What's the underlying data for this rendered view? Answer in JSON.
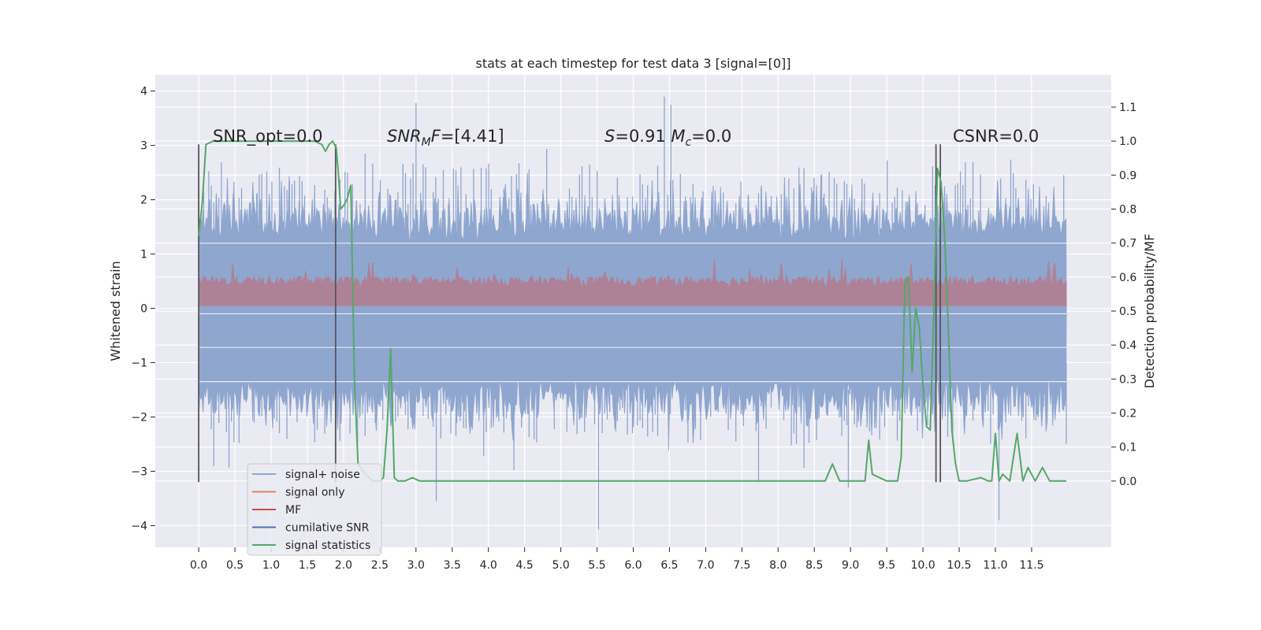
{
  "chart_data": {
    "type": "line",
    "title": "stats at each timestep for test data 3 [signal=[0]]",
    "ylabel": "Whitened strain",
    "y2label": "Detection probability/MF",
    "xlim": [
      -0.6,
      12.6
    ],
    "ylim": [
      -4.4,
      4.3
    ],
    "y2lim": [
      -0.195,
      1.195
    ],
    "x_ticks": [
      "0.0",
      "0.5",
      "1.0",
      "1.5",
      "2.0",
      "2.5",
      "3.0",
      "3.5",
      "4.0",
      "4.5",
      "5.0",
      "5.5",
      "6.0",
      "6.5",
      "7.0",
      "7.5",
      "8.0",
      "8.5",
      "9.0",
      "9.5",
      "10.0",
      "10.5",
      "11.0",
      "11.5"
    ],
    "y_ticks": [
      "−4",
      "−3",
      "−2",
      "−1",
      "0",
      "1",
      "2",
      "3",
      "4"
    ],
    "y2_ticks": [
      "0.0",
      "0.1",
      "0.2",
      "0.3",
      "0.4",
      "0.5",
      "0.6",
      "0.7",
      "0.8",
      "0.9",
      "1.0",
      "1.1"
    ],
    "grid": true,
    "legend_position": "lower-left",
    "legend": [
      {
        "name": "signal+ noise",
        "color": "#8fa6cf"
      },
      {
        "name": "signal only",
        "color": "#dd8452"
      },
      {
        "name": "MF",
        "color": "#c44e52"
      },
      {
        "name": "cumilative SNR",
        "color": "#4c72b0"
      },
      {
        "name": "signal statistics",
        "color": "#55a868"
      }
    ],
    "annotations": [
      {
        "parts": [
          {
            "t": "SNR_opt=0.0",
            "i": false
          }
        ]
      },
      {
        "parts": [
          {
            "t": "SNR",
            "i": true
          },
          {
            "t": "M",
            "i": true,
            "sub": true
          },
          {
            "t": "F",
            "i": true
          },
          {
            "t": "=[4.41]",
            "i": false
          }
        ]
      },
      {
        "parts": [
          {
            "t": "S",
            "i": true
          },
          {
            "t": "=0.91   ",
            "i": false
          },
          {
            "t": "M",
            "i": true
          },
          {
            "t": "c",
            "i": true,
            "sub": true
          },
          {
            "t": "=0.0",
            "i": false
          }
        ]
      },
      {
        "parts": [
          {
            "t": "CSNR=0.0",
            "i": false
          }
        ]
      }
    ],
    "vertical_lines_x": [
      0.0,
      1.89,
      10.18,
      10.24
    ],
    "vertical_lines_y": [
      -3.2,
      3.02
    ],
    "noise_band": {
      "x_start": 0.0,
      "x_end": 11.98,
      "core_y": [
        -1.25,
        1.2
      ],
      "envelope_y": [
        -2.1,
        2.3
      ],
      "extreme_y": [
        -4.07,
        3.9
      ]
    },
    "mf_band": {
      "x_start": 0.0,
      "x_end": 11.98,
      "y_range": [
        0.0,
        0.55
      ],
      "max_y": 1.0
    },
    "series": [
      {
        "name": "signal statistics",
        "axis": "right",
        "x": [
          0.0,
          0.05,
          0.1,
          0.2,
          0.5,
          1.0,
          1.5,
          1.6,
          1.7,
          1.75,
          1.8,
          1.85,
          1.9,
          1.93,
          1.96,
          2.0,
          2.05,
          2.1,
          2.15,
          2.2,
          2.3,
          2.4,
          2.5,
          2.55,
          2.6,
          2.65,
          2.7,
          2.75,
          2.85,
          2.95,
          3.05,
          3.15,
          3.25,
          3.5,
          4.0,
          5.0,
          6.0,
          7.0,
          7.5,
          7.6,
          7.7,
          8.0,
          8.5,
          8.65,
          8.75,
          8.85,
          9.0,
          9.2,
          9.25,
          9.3,
          9.5,
          9.65,
          9.7,
          9.75,
          9.8,
          9.85,
          9.9,
          9.95,
          10.0,
          10.05,
          10.1,
          10.15,
          10.2,
          10.25,
          10.3,
          10.35,
          10.4,
          10.45,
          10.5,
          10.6,
          10.8,
          10.9,
          10.95,
          11.0,
          11.05,
          11.1,
          11.2,
          11.3,
          11.38,
          11.45,
          11.55,
          11.65,
          11.75,
          11.9,
          11.98
        ],
        "values": [
          0.72,
          0.82,
          0.99,
          1.0,
          1.0,
          1.0,
          1.0,
          1.0,
          0.99,
          0.97,
          0.99,
          1.0,
          0.98,
          0.9,
          0.8,
          0.81,
          0.83,
          0.87,
          0.3,
          0.05,
          0.02,
          0.0,
          0.0,
          0.01,
          0.15,
          0.39,
          0.01,
          0.0,
          0.0,
          0.01,
          0.0,
          0.0,
          0.0,
          0.0,
          0.0,
          0.0,
          0.0,
          0.0,
          0.0,
          0.0,
          0.0,
          0.0,
          0.0,
          0.0,
          0.05,
          0.0,
          0.0,
          0.0,
          0.12,
          0.02,
          0.0,
          0.0,
          0.07,
          0.58,
          0.6,
          0.32,
          0.51,
          0.45,
          0.28,
          0.16,
          0.15,
          0.5,
          0.92,
          0.88,
          0.72,
          0.45,
          0.15,
          0.05,
          0.0,
          0.0,
          0.01,
          0.0,
          0.0,
          0.14,
          0.0,
          0.02,
          0.0,
          0.14,
          0.0,
          0.04,
          0.0,
          0.04,
          0.0,
          0.0,
          0.0
        ]
      }
    ]
  }
}
